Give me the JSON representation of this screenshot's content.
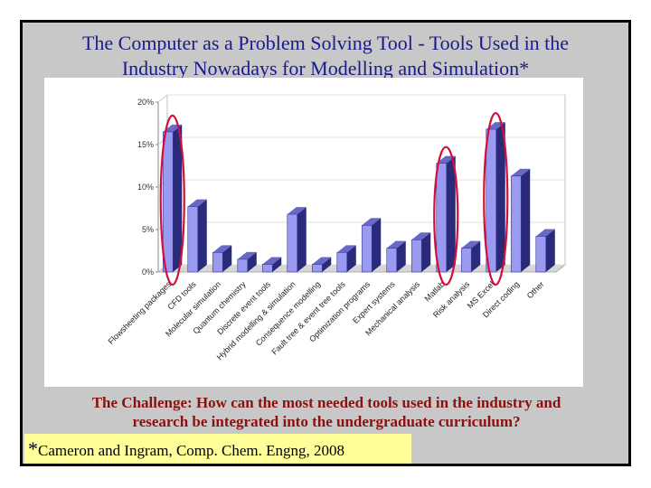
{
  "title_line1": "The Computer as a Problem Solving Tool - Tools Used in the",
  "title_line2": "Industry Nowadays for Modelling and Simulation*",
  "challenge_line1": "The Challenge: How can the most needed tools used in the industry and",
  "challenge_line2": "research be integrated into the undergraduate curriculum?",
  "citation_star": "*",
  "citation_text": "Cameron and Ingram, Comp. Chem. Engng, 2008",
  "chart_data": {
    "type": "bar",
    "categories": [
      "Flowsheeting packages",
      "CFD tools",
      "Molecular simulation",
      "Quantum chemistry",
      "Discrete event tools",
      "Hybrid modelling & simulation",
      "Consequence modelling",
      "Fault tree & event tree tools",
      "Optimization programs",
      "Expert systems",
      "Mechanical analysis",
      "Matlab",
      "Risk analysis",
      "MS Excel",
      "Direct coding",
      "Other"
    ],
    "values": [
      16.5,
      7.7,
      2.3,
      1.5,
      0.9,
      6.8,
      0.9,
      2.3,
      5.5,
      2.8,
      3.8,
      12.8,
      2.8,
      16.8,
      11.3,
      4.2
    ],
    "yticks": [
      "0%",
      "5%",
      "10%",
      "15%",
      "20%"
    ],
    "ylim": [
      0,
      20
    ],
    "highlighted": [
      "Flowsheeting packages",
      "Matlab",
      "MS Excel"
    ],
    "colors": {
      "bar_front": "#9a9af0",
      "bar_side": "#2a2a7a",
      "bar_top": "#6868c8",
      "highlight": "#d0103a"
    }
  }
}
